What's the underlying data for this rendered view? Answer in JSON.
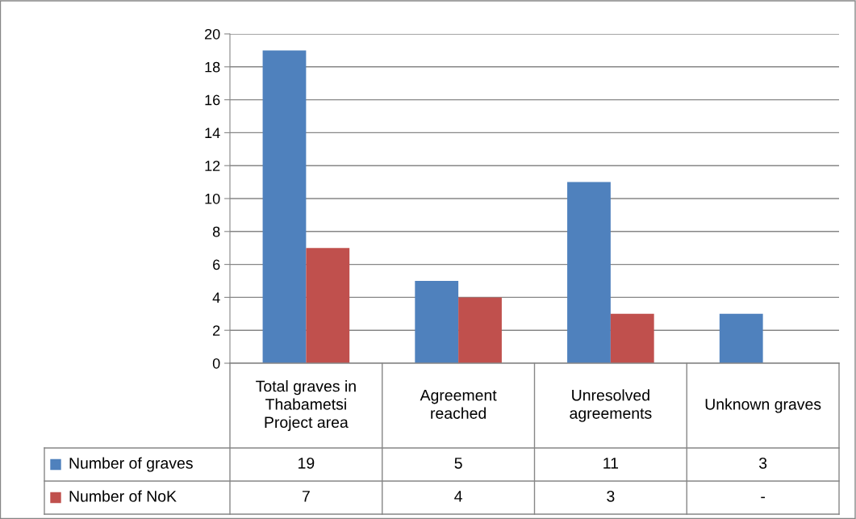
{
  "chart_data": {
    "type": "bar",
    "categories": [
      "Total graves in Thabametsi Project area",
      "Agreement reached",
      "Unresolved agreements",
      "Unknown graves"
    ],
    "series": [
      {
        "name": "Number of graves",
        "color": "#4f81bd",
        "values": [
          19,
          5,
          11,
          3
        ],
        "value_labels": [
          "19",
          "5",
          "11",
          "3"
        ]
      },
      {
        "name": "Number of NoK",
        "color": "#c0504d",
        "values": [
          7,
          4,
          3,
          null
        ],
        "value_labels": [
          "7",
          "4",
          "3",
          "-"
        ]
      }
    ],
    "ylim": [
      0,
      20
    ],
    "yticks": [
      0,
      2,
      4,
      6,
      8,
      10,
      12,
      14,
      16,
      18,
      20
    ],
    "grid": "y",
    "legend": "bottom"
  }
}
